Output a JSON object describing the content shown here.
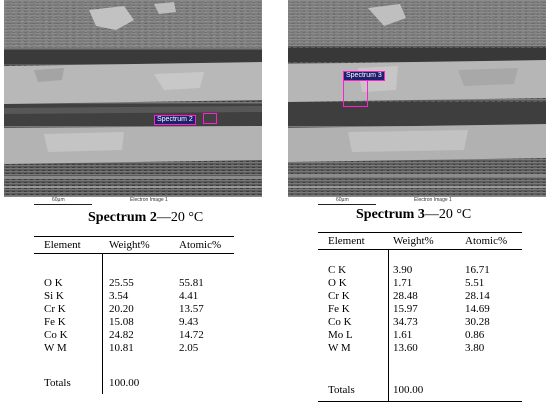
{
  "panels": [
    {
      "scale_label": "60µm",
      "image_label": "Electron Image 1",
      "spectrum_label": "Spectrum 2"
    },
    {
      "scale_label": "60µm",
      "image_label": "Electron Image 1",
      "spectrum_label": "Spectrum 3"
    }
  ],
  "tables": [
    {
      "title_bold": "Spectrum 2",
      "title_rest": "—20 °C",
      "headers": [
        "Element",
        "Weight%",
        "Atomic%"
      ],
      "rows": [
        [
          "O K",
          "25.55",
          "55.81"
        ],
        [
          "Si K",
          "3.54",
          "4.41"
        ],
        [
          "Cr K",
          "20.20",
          "13.57"
        ],
        [
          "Fe K",
          "15.08",
          "9.43"
        ],
        [
          "Co K",
          "24.82",
          "14.72"
        ],
        [
          "W M",
          "10.81",
          "2.05"
        ]
      ],
      "totals_label": "Totals",
      "totals_value": "100.00"
    },
    {
      "title_bold": "Spectrum 3",
      "title_rest": "—20 °C",
      "headers": [
        "Element",
        "Weight%",
        "Atomic%"
      ],
      "rows": [
        [
          "C K",
          "3.90",
          "16.71"
        ],
        [
          "O K",
          "1.71",
          "5.51"
        ],
        [
          "Cr K",
          "28.48",
          "28.14"
        ],
        [
          "Fe K",
          "15.97",
          "14.69"
        ],
        [
          "Co K",
          "34.73",
          "30.28"
        ],
        [
          "Mo L",
          "1.61",
          "0.86"
        ],
        [
          "W M",
          "13.60",
          "3.80"
        ]
      ],
      "totals_label": "Totals",
      "totals_value": "100.00"
    }
  ]
}
